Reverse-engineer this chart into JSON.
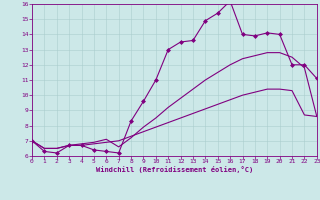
{
  "xlabel": "Windchill (Refroidissement éolien,°C)",
  "background_color": "#cce8e8",
  "line_color": "#800080",
  "xlim": [
    0,
    23
  ],
  "ylim": [
    6,
    16
  ],
  "yticks": [
    6,
    7,
    8,
    9,
    10,
    11,
    12,
    13,
    14,
    15,
    16
  ],
  "xticks": [
    0,
    1,
    2,
    3,
    4,
    5,
    6,
    7,
    8,
    9,
    10,
    11,
    12,
    13,
    14,
    15,
    16,
    17,
    18,
    19,
    20,
    21,
    22,
    23
  ],
  "line1_x": [
    0,
    1,
    2,
    3,
    4,
    5,
    6,
    7,
    8,
    9,
    10,
    11,
    12,
    13,
    14,
    15,
    16,
    17,
    18,
    19,
    20,
    21,
    22,
    23
  ],
  "line1_y": [
    7.0,
    6.3,
    6.2,
    6.7,
    6.7,
    6.4,
    6.3,
    6.2,
    8.3,
    9.6,
    11.0,
    13.0,
    13.5,
    13.6,
    14.9,
    15.4,
    16.2,
    14.0,
    13.9,
    14.1,
    14.0,
    12.0,
    12.0,
    11.1
  ],
  "line2_x": [
    0,
    1,
    2,
    3,
    4,
    5,
    6,
    7,
    8,
    9,
    10,
    11,
    12,
    13,
    14,
    15,
    16,
    17,
    18,
    19,
    20,
    21,
    22,
    23
  ],
  "line2_y": [
    7.0,
    6.5,
    6.5,
    6.7,
    6.8,
    6.9,
    7.1,
    6.6,
    7.2,
    7.9,
    8.5,
    9.2,
    9.8,
    10.4,
    11.0,
    11.5,
    12.0,
    12.4,
    12.6,
    12.8,
    12.8,
    12.5,
    11.8,
    8.6
  ],
  "line3_x": [
    0,
    1,
    2,
    3,
    4,
    5,
    6,
    7,
    8,
    9,
    10,
    11,
    12,
    13,
    14,
    15,
    16,
    17,
    18,
    19,
    20,
    21,
    22,
    23
  ],
  "line3_y": [
    7.0,
    6.5,
    6.5,
    6.7,
    6.7,
    6.8,
    6.9,
    7.0,
    7.3,
    7.6,
    7.9,
    8.2,
    8.5,
    8.8,
    9.1,
    9.4,
    9.7,
    10.0,
    10.2,
    10.4,
    10.4,
    10.3,
    8.7,
    8.6
  ]
}
